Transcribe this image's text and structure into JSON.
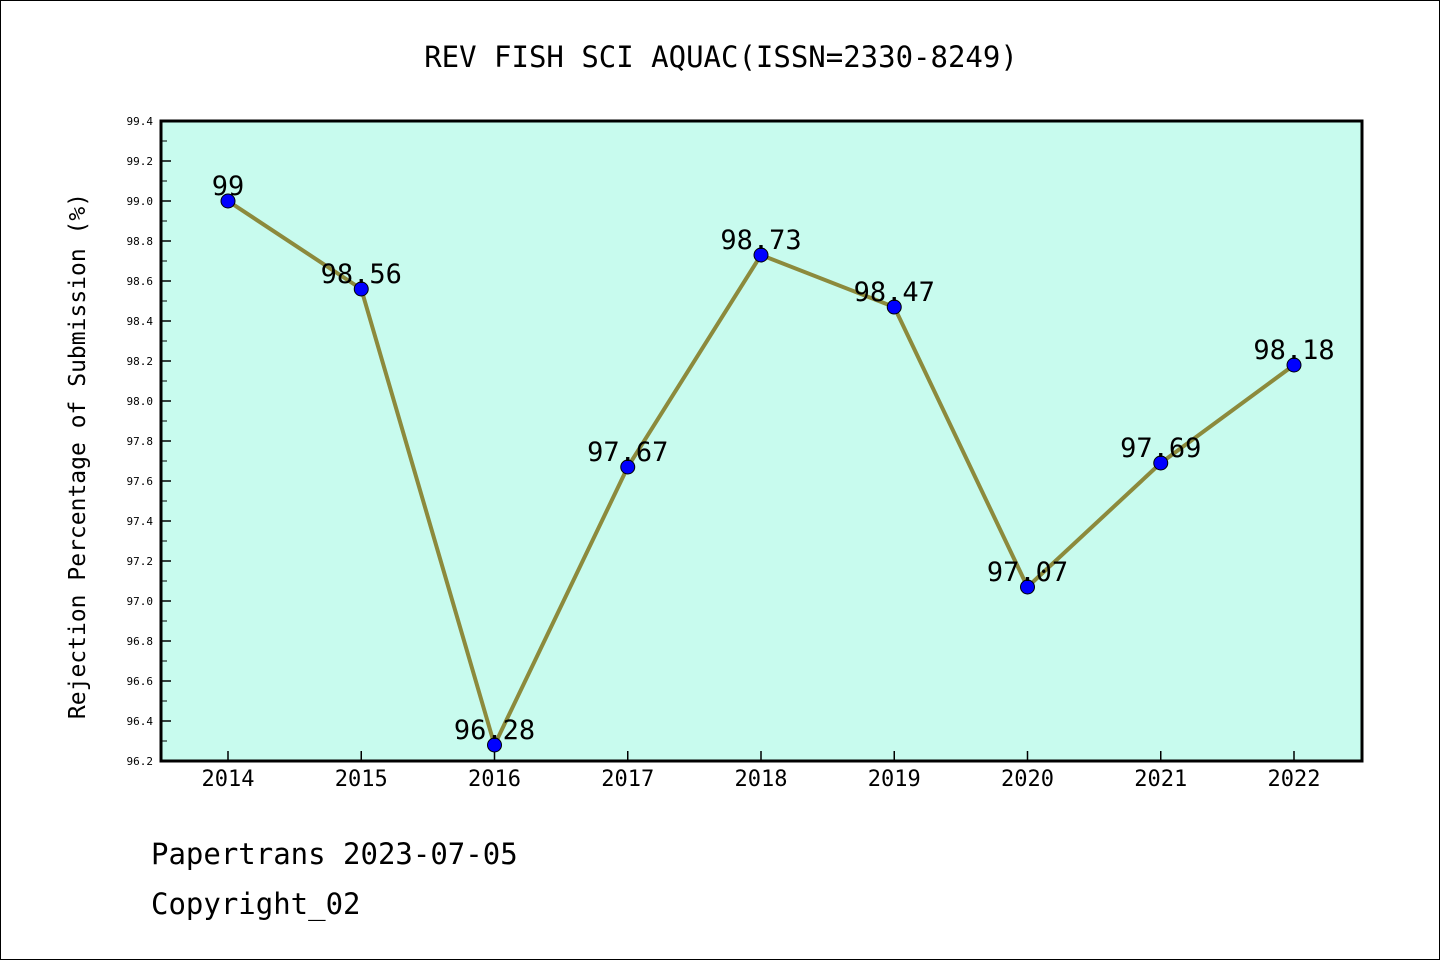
{
  "chart_data": {
    "type": "line",
    "title": "REV FISH SCI AQUAC(ISSN=2330-8249)",
    "xlabel": "",
    "ylabel": "Rejection Percentage of Submission (%)",
    "categories": [
      "2014",
      "2015",
      "2016",
      "2017",
      "2018",
      "2019",
      "2020",
      "2021",
      "2022"
    ],
    "series": [
      {
        "values": [
          99,
          98.56,
          96.28,
          97.67,
          98.73,
          98.47,
          97.07,
          97.69,
          98.18
        ],
        "data_labels": [
          "99",
          "98.56",
          "96.28",
          "97.67",
          "98.73",
          "98.47",
          "97.07",
          "97.69",
          "98.18"
        ]
      }
    ],
    "ylim": [
      96.2,
      99.4
    ],
    "yticks": [
      "96.2",
      "96.4",
      "96.6",
      "96.8",
      "97.0",
      "97.2",
      "97.4",
      "97.6",
      "97.8",
      "98.0",
      "98.2",
      "98.4",
      "98.6",
      "98.8",
      "99.0",
      "99.2",
      "99.4"
    ],
    "grid": false,
    "legend": "none",
    "colors": {
      "plot_background": "#c8fbee",
      "line": "#8c8a3c",
      "marker": "#0000ff",
      "frame": "#000000"
    }
  },
  "footer": {
    "date_line": "Papertrans 2023-07-05",
    "copyright_line": "Copyright_02"
  }
}
